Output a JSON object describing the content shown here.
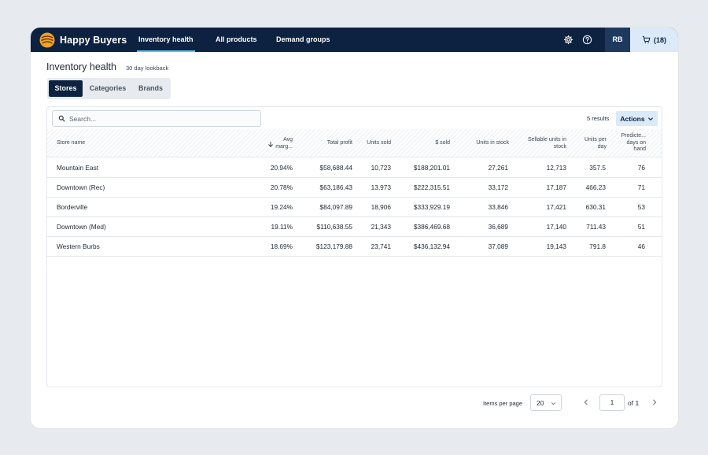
{
  "app": {
    "brand_name": "Happy Buyers",
    "nav_tabs": [
      {
        "label": "Inventory health",
        "active": true
      },
      {
        "label": "All products",
        "active": false
      },
      {
        "label": "Demand groups",
        "active": false
      }
    ],
    "icons": {
      "settings": "gear-icon",
      "help": "help-circle-icon",
      "cart": "cart-icon"
    },
    "user_initials": "RB",
    "cart_label": "(18)",
    "colors": {
      "navbar": "#0d2240",
      "accent_underline": "#59c3ee",
      "button_light": "#dbe9f8"
    }
  },
  "page": {
    "title": "Inventory health",
    "subtitle": "30 day lookback"
  },
  "segments": [
    {
      "label": "Stores",
      "active": true
    },
    {
      "label": "Categories",
      "active": false
    },
    {
      "label": "Brands",
      "active": false
    }
  ],
  "toolbar": {
    "search_placeholder": "Search...",
    "results": "5 results",
    "actions_label": "Actions"
  },
  "table": {
    "sort": {
      "column": "Avg marg...",
      "direction": "descending"
    },
    "columns": [
      "Store name",
      "Avg marg...",
      "Total profit",
      "Units sold",
      "$ sold",
      "Units in stock",
      "Sellable units in stock",
      "Units per day",
      "Predicte... days on hand"
    ],
    "rows": [
      [
        "Mountain East",
        "20.94%",
        "$58,688.44",
        "10,723",
        "$188,201.01",
        "27,261",
        "12,713",
        "357.5",
        "76"
      ],
      [
        "Downtown (Rec)",
        "20.78%",
        "$63,186.43",
        "13,973",
        "$222,315.51",
        "33,172",
        "17,187",
        "466.23",
        "71"
      ],
      [
        "Borderville",
        "19.24%",
        "$84,097.89",
        "18,906",
        "$333,929.19",
        "33,846",
        "17,421",
        "630.31",
        "53"
      ],
      [
        "Downtown (Med)",
        "19.11%",
        "$110,638.55",
        "21,343",
        "$386,469.68",
        "36,689",
        "17,140",
        "711.43",
        "51"
      ],
      [
        "Western Burbs",
        "18.69%",
        "$123,179.88",
        "23,741",
        "$436,132.94",
        "37,089",
        "19,143",
        "791.8",
        "46"
      ]
    ]
  },
  "pagination": {
    "items_per_page_label": "Items per page",
    "items_per_page": "20",
    "page": "1",
    "of_label": "of 1"
  }
}
